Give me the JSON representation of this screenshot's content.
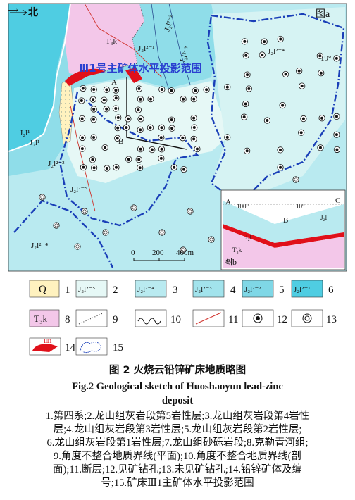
{
  "map": {
    "north_label": "北",
    "panel_label": "图a",
    "unit_labels": [
      "T₃k",
      "J₂l²⁻¹",
      "J₂l²⁻²",
      "J₂l²⁻³",
      "J₂l²⁻⁴",
      "J₂l¹",
      "J₂l¹",
      "J₂l²⁻³",
      "J₂l²⁻⁵",
      "J₂l²⁻⁴"
    ],
    "dip_label": "19°",
    "orebody_label": "Ⅲ1号主矿体水平投影范围",
    "points": [
      "A",
      "B"
    ],
    "scale": [
      "0",
      "200",
      "400m"
    ]
  },
  "inset": {
    "panel_label": "图b",
    "points": [
      "A",
      "B",
      "C"
    ],
    "angles": [
      "100°",
      "10°"
    ],
    "unit_labels": [
      "J₂l",
      "J₂l",
      "T₃k"
    ]
  },
  "legend": [
    {
      "label": "Q",
      "number": "1"
    },
    {
      "label": "J₂l²⁻⁵",
      "number": "2"
    },
    {
      "label": "J₂l²⁻⁴",
      "number": "3"
    },
    {
      "label": "J₂l²⁻³",
      "number": "4"
    },
    {
      "label": "J₂l²⁻²",
      "number": "5"
    },
    {
      "label": "J₂l²⁻¹",
      "number": "6"
    },
    {
      "label": "T₃k",
      "number": "8"
    },
    {
      "number": "9"
    },
    {
      "number": "10"
    },
    {
      "number": "11"
    },
    {
      "number": "12"
    },
    {
      "number": "13"
    },
    {
      "label": "Ⅲ1",
      "number": "14"
    },
    {
      "number": "15"
    }
  ],
  "caption": {
    "cn": "图 2  火烧云铅锌矿床地质略图",
    "en": [
      "Fig.2  Geological sketch of Huoshaoyun lead-zinc",
      "deposit"
    ],
    "notes": [
      "1.第四系;2.龙山组灰岩段第5岩性层;3.龙山组灰岩段第4岩性",
      "层;4.龙山组灰岩段第3岩性层;5.龙山组灰岩段第2岩性层;",
      "6.龙山组灰岩段第1岩性层;7.龙山组砂砾岩段;8.克勒青河组;",
      "9.角度不整合地质界线(平面);10.角度不整合地质界线(剖",
      "面);11.断层;12.见矿钻孔;13.未见矿钻孔;14.铅锌矿体及编",
      "号;15.矿床Ⅲ1主矿体水平投影范围"
    ]
  }
}
